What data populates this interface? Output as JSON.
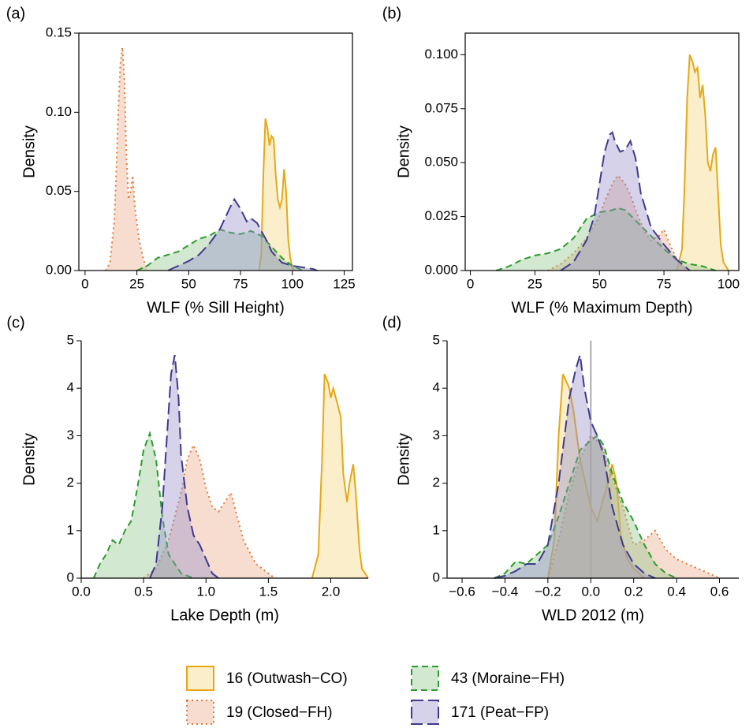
{
  "chart_data": [
    {
      "type": "density",
      "panel": "(a)",
      "x_label": "WLF (% Sill Height)",
      "y_label": "Density",
      "frame": true,
      "xlim": [
        -3,
        129
      ],
      "ylim": [
        0,
        0.15
      ],
      "xticks": [
        0,
        25,
        50,
        75,
        100,
        125
      ],
      "yticks": [
        {
          "value": 0,
          "label": "0.00"
        },
        {
          "value": 0.05,
          "label": "0.05"
        },
        {
          "value": 0.1,
          "label": "0.10"
        },
        {
          "value": 0.15,
          "label": "0.15"
        }
      ],
      "series": [
        {
          "name": "16 (Outwash−CO)",
          "color": "#E6A817",
          "fill": "#F6D77E",
          "dash": "solid",
          "x": [
            84,
            85,
            86,
            87,
            88,
            89,
            90,
            91,
            92,
            93,
            94,
            95,
            96,
            97,
            98,
            99,
            100,
            101
          ],
          "values": [
            0,
            0.01,
            0.06,
            0.096,
            0.09,
            0.079,
            0.085,
            0.083,
            0.06,
            0.045,
            0.04,
            0.045,
            0.064,
            0.05,
            0.02,
            0.008,
            0.002,
            0
          ]
        },
        {
          "name": "19 (Closed−FH)",
          "color": "#E07B39",
          "fill": "#EBA987",
          "dash": "dotted",
          "x": [
            10,
            12,
            14,
            15,
            16,
            17,
            18,
            19,
            20,
            21,
            22,
            23,
            24,
            26,
            28,
            30
          ],
          "values": [
            0,
            0.005,
            0.03,
            0.06,
            0.1,
            0.13,
            0.141,
            0.12,
            0.07,
            0.045,
            0.05,
            0.06,
            0.04,
            0.02,
            0.008,
            0
          ]
        },
        {
          "name": "43 (Moraine−FH)",
          "color": "#2E9B2E",
          "fill": "#8FC68A",
          "dash": "dashed",
          "x": [
            25,
            30,
            35,
            40,
            45,
            50,
            55,
            60,
            65,
            70,
            75,
            80,
            85,
            90,
            95,
            100,
            105
          ],
          "values": [
            0,
            0.003,
            0.008,
            0.01,
            0.012,
            0.016,
            0.02,
            0.022,
            0.026,
            0.024,
            0.023,
            0.025,
            0.022,
            0.015,
            0.008,
            0.003,
            0
          ]
        },
        {
          "name": "171 (Peat−FP)",
          "color": "#3F3A8C",
          "fill": "#958ECB",
          "dash": "longdash",
          "x": [
            40,
            45,
            50,
            55,
            60,
            65,
            70,
            72,
            75,
            78,
            80,
            83,
            85,
            88,
            90,
            95,
            100,
            105,
            110,
            112
          ],
          "values": [
            0,
            0.003,
            0.006,
            0.01,
            0.017,
            0.026,
            0.04,
            0.045,
            0.039,
            0.031,
            0.033,
            0.03,
            0.025,
            0.018,
            0.012,
            0.005,
            0.003,
            0.002,
            0.001,
            0
          ]
        }
      ]
    },
    {
      "type": "density",
      "panel": "(b)",
      "x_label": "WLF (% Maximum Depth)",
      "y_label": "Density",
      "frame": true,
      "xlim": [
        -2,
        104
      ],
      "ylim": [
        0,
        0.11
      ],
      "xticks": [
        0,
        25,
        50,
        75,
        100
      ],
      "yticks": [
        {
          "value": 0,
          "label": "0.000"
        },
        {
          "value": 0.025,
          "label": "0.025"
        },
        {
          "value": 0.05,
          "label": "0.050"
        },
        {
          "value": 0.075,
          "label": "0.075"
        },
        {
          "value": 0.1,
          "label": "0.100"
        }
      ],
      "series": [
        {
          "color": "#E6A817",
          "fill": "#F6D77E",
          "dash": "solid",
          "x": [
            80,
            82,
            83,
            84,
            85,
            86,
            87,
            88,
            89,
            90,
            91,
            92,
            93,
            94,
            95,
            96,
            97,
            98,
            100
          ],
          "values": [
            0,
            0.01,
            0.04,
            0.08,
            0.1,
            0.097,
            0.092,
            0.094,
            0.08,
            0.086,
            0.072,
            0.05,
            0.046,
            0.054,
            0.057,
            0.035,
            0.012,
            0.004,
            0
          ]
        },
        {
          "color": "#E07B39",
          "fill": "#EBA987",
          "dash": "dotted",
          "x": [
            30,
            35,
            40,
            45,
            50,
            52,
            55,
            57,
            58,
            60,
            62,
            65,
            68,
            70,
            73,
            75,
            77,
            80,
            82,
            85
          ],
          "values": [
            0,
            0.003,
            0.008,
            0.015,
            0.025,
            0.032,
            0.04,
            0.044,
            0.043,
            0.04,
            0.035,
            0.025,
            0.017,
            0.014,
            0.016,
            0.019,
            0.013,
            0.005,
            0.002,
            0
          ]
        },
        {
          "color": "#2E9B2E",
          "fill": "#8FC68A",
          "dash": "dashed",
          "x": [
            10,
            15,
            20,
            25,
            30,
            35,
            40,
            45,
            50,
            55,
            57,
            60,
            65,
            70,
            75,
            80,
            85,
            90,
            95
          ],
          "values": [
            0,
            0.002,
            0.005,
            0.007,
            0.008,
            0.01,
            0.015,
            0.024,
            0.027,
            0.028,
            0.029,
            0.028,
            0.022,
            0.016,
            0.01,
            0.005,
            0.003,
            0.002,
            0
          ]
        },
        {
          "color": "#3F3A8C",
          "fill": "#958ECB",
          "dash": "longdash",
          "x": [
            35,
            40,
            45,
            48,
            50,
            52,
            54,
            55,
            56,
            58,
            60,
            62,
            64,
            66,
            70,
            75,
            80,
            85
          ],
          "values": [
            0,
            0.004,
            0.014,
            0.025,
            0.04,
            0.055,
            0.063,
            0.064,
            0.06,
            0.055,
            0.056,
            0.06,
            0.052,
            0.036,
            0.02,
            0.012,
            0.005,
            0
          ]
        }
      ]
    },
    {
      "type": "density",
      "panel": "(c)",
      "x_label": "Lake Depth (m)",
      "y_label": "Density",
      "frame": false,
      "xlim": [
        0,
        2.3
      ],
      "ylim": [
        0,
        5
      ],
      "xticks": [
        {
          "value": 0,
          "label": "0.0"
        },
        0.5,
        {
          "value": 1,
          "label": "1.0"
        },
        1.5,
        {
          "value": 2,
          "label": "2.0"
        }
      ],
      "yticks": [
        0,
        1,
        2,
        3,
        4,
        5
      ],
      "series": [
        {
          "color": "#E6A817",
          "fill": "#F6D77E",
          "dash": "solid",
          "x": [
            1.85,
            1.9,
            1.93,
            1.95,
            1.98,
            2.0,
            2.02,
            2.05,
            2.08,
            2.1,
            2.13,
            2.15,
            2.18,
            2.2,
            2.23,
            2.25,
            2.3
          ],
          "values": [
            0,
            0.5,
            2.5,
            4.3,
            4.1,
            3.8,
            4.0,
            3.7,
            3.4,
            2.2,
            1.6,
            2.0,
            2.4,
            1.8,
            0.6,
            0.2,
            0
          ]
        },
        {
          "color": "#E07B39",
          "fill": "#EBA987",
          "dash": "dotted",
          "x": [
            0.5,
            0.6,
            0.7,
            0.8,
            0.85,
            0.9,
            0.95,
            1.0,
            1.05,
            1.1,
            1.15,
            1.2,
            1.25,
            1.3,
            1.4,
            1.5,
            1.55
          ],
          "values": [
            0,
            0.2,
            0.8,
            1.8,
            2.5,
            2.8,
            2.5,
            1.9,
            1.5,
            1.4,
            1.6,
            1.8,
            1.3,
            0.8,
            0.3,
            0.1,
            0
          ]
        },
        {
          "color": "#2E9B2E",
          "fill": "#8FC68A",
          "dash": "dashed",
          "x": [
            0.1,
            0.15,
            0.2,
            0.25,
            0.3,
            0.35,
            0.4,
            0.45,
            0.5,
            0.55,
            0.6,
            0.65,
            0.7,
            0.75,
            0.8,
            0.9
          ],
          "values": [
            0,
            0.3,
            0.5,
            0.8,
            0.7,
            1.0,
            1.2,
            1.9,
            2.7,
            3.05,
            2.5,
            1.3,
            0.5,
            0.3,
            0.1,
            0
          ]
        },
        {
          "color": "#3F3A8C",
          "fill": "#958ECB",
          "dash": "longdash",
          "x": [
            0.55,
            0.6,
            0.65,
            0.7,
            0.72,
            0.75,
            0.78,
            0.8,
            0.85,
            0.9,
            0.95,
            1.0,
            1.05,
            1.1
          ],
          "values": [
            0,
            0.3,
            1.5,
            3.5,
            4.3,
            4.7,
            3.8,
            2.6,
            1.5,
            0.9,
            0.7,
            0.4,
            0.1,
            0
          ]
        }
      ]
    },
    {
      "type": "density",
      "panel": "(d)",
      "x_label": "WLD 2012 (m)",
      "y_label": "Density",
      "frame": false,
      "xlim": [
        -0.67,
        0.69
      ],
      "ylim": [
        0,
        5
      ],
      "vline": 0,
      "vline_color": "#AAAAAA",
      "xticks": [
        {
          "value": -0.6,
          "label": "−0.6"
        },
        {
          "value": -0.4,
          "label": "−0.4"
        },
        {
          "value": -0.2,
          "label": "−0.2"
        },
        {
          "value": 0,
          "label": "0.0"
        },
        0.2,
        0.4,
        0.6
      ],
      "yticks": [
        0,
        1,
        2,
        3,
        4,
        5
      ],
      "series": [
        {
          "color": "#E6A817",
          "fill": "#F6D77E",
          "dash": "solid",
          "x": [
            -0.2,
            -0.17,
            -0.15,
            -0.13,
            -0.1,
            -0.08,
            -0.05,
            -0.02,
            0,
            0.03,
            0.06,
            0.08,
            0.1,
            0.12,
            0.14,
            0.17,
            0.2,
            0.25
          ],
          "values": [
            0,
            0.8,
            3.0,
            4.3,
            4.0,
            3.5,
            2.5,
            1.9,
            1.5,
            1.2,
            1.7,
            2.0,
            2.4,
            2.0,
            0.9,
            0.4,
            0.2,
            0
          ]
        },
        {
          "color": "#E07B39",
          "fill": "#EBA987",
          "dash": "dotted",
          "x": [
            -0.2,
            -0.15,
            -0.1,
            -0.05,
            0,
            0.05,
            0.1,
            0.15,
            0.2,
            0.25,
            0.3,
            0.35,
            0.4,
            0.45,
            0.5,
            0.55,
            0.6
          ],
          "values": [
            0,
            0.8,
            1.8,
            2.5,
            3.0,
            2.8,
            2.1,
            1.5,
            0.7,
            0.8,
            1.0,
            0.6,
            0.4,
            0.3,
            0.2,
            0.1,
            0
          ]
        },
        {
          "color": "#2E9B2E",
          "fill": "#8FC68A",
          "dash": "dashed",
          "x": [
            -0.45,
            -0.4,
            -0.35,
            -0.3,
            -0.25,
            -0.2,
            -0.15,
            -0.1,
            -0.05,
            0,
            0.03,
            0.06,
            0.1,
            0.15,
            0.2,
            0.25,
            0.3,
            0.35,
            0.4
          ],
          "values": [
            0,
            0.1,
            0.35,
            0.3,
            0.5,
            0.7,
            1.3,
            2.0,
            2.7,
            2.9,
            3.0,
            2.8,
            2.2,
            1.6,
            1.2,
            0.7,
            0.3,
            0.1,
            0
          ]
        },
        {
          "color": "#3F3A8C",
          "fill": "#958ECB",
          "dash": "longdash",
          "x": [
            -0.45,
            -0.4,
            -0.35,
            -0.3,
            -0.25,
            -0.2,
            -0.15,
            -0.1,
            -0.07,
            -0.05,
            -0.03,
            0,
            0.03,
            0.06,
            0.1,
            0.15,
            0.2,
            0.25,
            0.3
          ],
          "values": [
            0,
            0.05,
            0.15,
            0.3,
            0.3,
            0.7,
            2.0,
            3.8,
            4.4,
            4.7,
            4.0,
            3.3,
            3.0,
            2.6,
            1.5,
            0.7,
            0.3,
            0.1,
            0
          ]
        }
      ]
    }
  ]
}
